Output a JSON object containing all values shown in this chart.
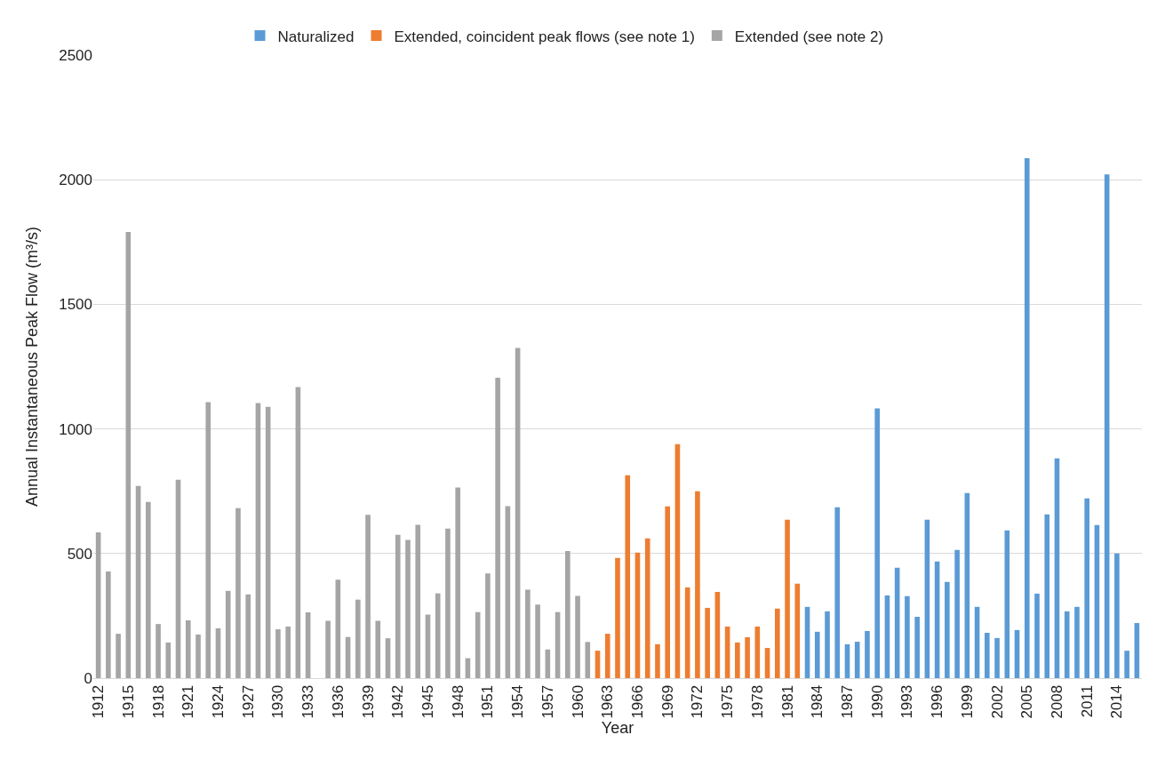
{
  "chart_data": {
    "type": "bar",
    "xlabel": "Year",
    "ylabel": "Annual Instantaneous Peak Flow (m³/s)",
    "categories": [
      "1912",
      null,
      null,
      "1915",
      null,
      null,
      "1918",
      null,
      null,
      "1921",
      null,
      null,
      "1924",
      null,
      null,
      "1927",
      null,
      null,
      "1930",
      null,
      null,
      "1933",
      null,
      null,
      "1936",
      null,
      null,
      "1939",
      null,
      null,
      "1942",
      null,
      null,
      "1945",
      null,
      null,
      "1948",
      null,
      null,
      "1951",
      null,
      null,
      "1954",
      null,
      null,
      "1957",
      null,
      null,
      "1960",
      null,
      null,
      "1963",
      null,
      null,
      "1966",
      null,
      null,
      "1969",
      null,
      null,
      "1972",
      null,
      null,
      "1975",
      null,
      null,
      "1978",
      null,
      null,
      "1981",
      null,
      null,
      "1984",
      null,
      null,
      "1987",
      null,
      null,
      "1990",
      null,
      null,
      "1993",
      null,
      null,
      "1996",
      null,
      null,
      "1999",
      null,
      null,
      "2002",
      null,
      null,
      "2005",
      null,
      null,
      "2008",
      null,
      null,
      "2011",
      null,
      null,
      "2014",
      null,
      null
    ],
    "series": [
      {
        "name": "Naturalized",
        "color": "#5b9bd5",
        "values": [
          null,
          null,
          null,
          null,
          null,
          null,
          null,
          null,
          null,
          null,
          null,
          null,
          null,
          null,
          null,
          null,
          null,
          null,
          null,
          null,
          null,
          null,
          null,
          null,
          null,
          null,
          null,
          null,
          null,
          null,
          null,
          null,
          null,
          null,
          null,
          null,
          null,
          null,
          null,
          null,
          null,
          null,
          null,
          null,
          null,
          null,
          null,
          null,
          null,
          null,
          null,
          null,
          null,
          null,
          null,
          null,
          null,
          null,
          null,
          null,
          null,
          null,
          null,
          null,
          null,
          null,
          null,
          null,
          null,
          null,
          null,
          286,
          186,
          268,
          686,
          136,
          146,
          189,
          1082,
          332,
          443,
          329,
          246,
          636,
          468,
          386,
          514,
          743,
          286,
          182,
          161,
          593,
          193,
          2086,
          339,
          657,
          882,
          268,
          286,
          721,
          614,
          2021,
          500,
          110,
          221
        ]
      },
      {
        "name": "Extended, coincident peak flows (see note 1)",
        "color": "#ed7d31",
        "values": [
          null,
          null,
          null,
          null,
          null,
          null,
          null,
          null,
          null,
          null,
          null,
          null,
          null,
          null,
          null,
          null,
          null,
          null,
          null,
          null,
          null,
          null,
          null,
          null,
          null,
          null,
          null,
          null,
          null,
          null,
          null,
          null,
          null,
          null,
          null,
          null,
          null,
          null,
          null,
          null,
          null,
          null,
          null,
          null,
          null,
          null,
          null,
          null,
          null,
          null,
          110,
          178,
          482,
          814,
          504,
          561,
          136,
          689,
          939,
          364,
          750,
          282,
          346,
          207,
          143,
          164,
          207,
          121,
          279,
          636,
          379,
          null,
          null,
          null,
          null,
          null,
          null,
          null,
          null,
          null,
          null,
          null,
          null,
          null,
          null,
          null,
          null,
          null,
          null,
          null,
          null,
          null,
          null,
          null,
          null,
          null,
          null,
          null,
          null,
          null,
          null,
          null,
          null,
          null,
          null
        ]
      },
      {
        "name": "Extended (see note 2)",
        "color": "#a5a5a5",
        "values": [
          585,
          428,
          178,
          1790,
          771,
          707,
          217,
          143,
          796,
          232,
          175,
          1107,
          200,
          350,
          682,
          336,
          1104,
          1089,
          196,
          207,
          1168,
          264,
          null,
          230,
          395,
          165,
          315,
          655,
          230,
          160,
          575,
          555,
          615,
          255,
          340,
          600,
          765,
          80,
          265,
          420,
          1205,
          690,
          1325,
          355,
          295,
          115,
          265,
          510,
          330,
          145,
          null,
          null,
          null,
          null,
          null,
          null,
          null,
          null,
          null,
          null,
          null,
          null,
          null,
          null,
          null,
          null,
          null,
          null,
          null,
          null,
          null,
          null,
          null,
          null,
          null,
          null,
          null,
          null,
          null,
          null,
          null,
          null,
          null,
          null,
          null,
          null,
          null,
          null,
          null,
          null,
          null,
          null,
          null,
          null,
          null,
          null,
          null,
          null,
          null,
          null,
          null,
          null,
          null,
          null,
          null
        ]
      }
    ],
    "ylim": [
      0,
      2500
    ],
    "yticks": [
      0,
      500,
      1000,
      1500,
      2000,
      2500
    ],
    "grid": "y",
    "legend": "top"
  }
}
